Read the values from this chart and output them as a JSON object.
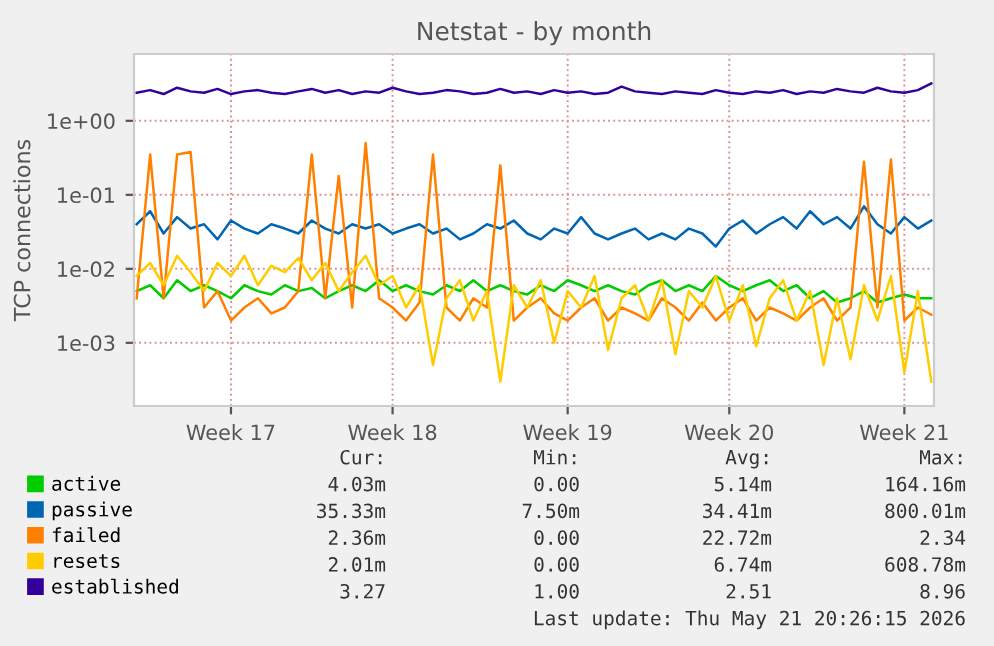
{
  "chart_data": {
    "type": "line",
    "title": "Netstat - by month",
    "ylabel": "TCP connections",
    "categories": [
      null,
      null,
      null,
      null,
      null,
      null,
      null,
      "Week 17",
      null,
      null,
      null,
      null,
      null,
      null,
      null,
      null,
      null,
      null,
      null,
      "Week 18",
      null,
      null,
      null,
      null,
      null,
      null,
      null,
      null,
      null,
      null,
      null,
      null,
      "Week 19",
      null,
      null,
      null,
      null,
      null,
      null,
      null,
      null,
      null,
      null,
      null,
      "Week 20",
      null,
      null,
      null,
      null,
      null,
      null,
      null,
      null,
      null,
      null,
      null,
      null,
      "Week 21",
      null,
      null
    ],
    "series": [
      {
        "name": "active",
        "color": "#00cc00",
        "values": [
          0.005,
          0.006,
          0.004,
          0.007,
          0.005,
          0.006,
          0.005,
          0.004,
          0.006,
          0.005,
          0.0045,
          0.006,
          0.005,
          0.0055,
          0.004,
          0.005,
          0.006,
          0.005,
          0.007,
          0.005,
          0.006,
          0.005,
          0.0045,
          0.006,
          0.005,
          0.007,
          0.005,
          0.006,
          0.005,
          0.0045,
          0.006,
          0.005,
          0.007,
          0.006,
          0.005,
          0.006,
          0.005,
          0.0045,
          0.006,
          0.007,
          0.005,
          0.006,
          0.005,
          0.008,
          0.006,
          0.005,
          0.006,
          0.007,
          0.005,
          0.006,
          0.004,
          0.005,
          0.0035,
          0.004,
          0.005,
          0.0035,
          0.004,
          0.0045,
          0.004,
          0.004
        ]
      },
      {
        "name": "passive",
        "color": "#0066b3",
        "values": [
          0.04,
          0.06,
          0.03,
          0.05,
          0.035,
          0.04,
          0.025,
          0.045,
          0.035,
          0.03,
          0.04,
          0.035,
          0.03,
          0.045,
          0.035,
          0.03,
          0.04,
          0.035,
          0.04,
          0.03,
          0.035,
          0.04,
          0.03,
          0.035,
          0.025,
          0.03,
          0.04,
          0.035,
          0.045,
          0.03,
          0.025,
          0.035,
          0.03,
          0.05,
          0.03,
          0.025,
          0.03,
          0.035,
          0.025,
          0.03,
          0.025,
          0.035,
          0.03,
          0.02,
          0.035,
          0.045,
          0.03,
          0.04,
          0.05,
          0.035,
          0.06,
          0.04,
          0.05,
          0.035,
          0.07,
          0.04,
          0.03,
          0.05,
          0.035,
          0.045
        ]
      },
      {
        "name": "failed",
        "color": "#ff8000",
        "values": [
          0.004,
          0.35,
          0.004,
          0.35,
          0.38,
          0.003,
          0.005,
          0.002,
          0.003,
          0.004,
          0.0025,
          0.003,
          0.005,
          0.35,
          0.004,
          0.18,
          0.003,
          0.5,
          0.004,
          0.003,
          0.002,
          0.0035,
          0.35,
          0.003,
          0.002,
          0.004,
          0.003,
          0.25,
          0.002,
          0.003,
          0.004,
          0.0025,
          0.002,
          0.003,
          0.004,
          0.002,
          0.003,
          0.0025,
          0.002,
          0.004,
          0.003,
          0.002,
          0.0035,
          0.002,
          0.003,
          0.004,
          0.002,
          0.003,
          0.0025,
          0.002,
          0.003,
          0.004,
          0.002,
          0.003,
          0.28,
          0.003,
          0.3,
          0.002,
          0.003,
          0.0024
        ]
      },
      {
        "name": "resets",
        "color": "#ffcc00",
        "values": [
          0.008,
          0.012,
          0.006,
          0.015,
          0.009,
          0.005,
          0.012,
          0.008,
          0.015,
          0.006,
          0.011,
          0.009,
          0.014,
          0.007,
          0.012,
          0.005,
          0.009,
          0.015,
          0.006,
          0.008,
          0.003,
          0.006,
          0.0005,
          0.004,
          0.007,
          0.002,
          0.005,
          0.0003,
          0.006,
          0.003,
          0.007,
          0.001,
          0.005,
          0.003,
          0.008,
          0.0008,
          0.004,
          0.006,
          0.002,
          0.007,
          0.0007,
          0.005,
          0.003,
          0.008,
          0.002,
          0.006,
          0.0009,
          0.004,
          0.007,
          0.002,
          0.005,
          0.0005,
          0.004,
          0.0006,
          0.006,
          0.002,
          0.008,
          0.0004,
          0.005,
          0.0003
        ]
      },
      {
        "name": "established",
        "color": "#330099",
        "values": [
          2.4,
          2.6,
          2.3,
          2.8,
          2.5,
          2.4,
          2.7,
          2.3,
          2.5,
          2.6,
          2.4,
          2.3,
          2.5,
          2.7,
          2.4,
          2.6,
          2.3,
          2.5,
          2.4,
          2.8,
          2.5,
          2.3,
          2.4,
          2.6,
          2.5,
          2.3,
          2.4,
          2.7,
          2.4,
          2.5,
          2.3,
          2.6,
          2.4,
          2.5,
          2.3,
          2.4,
          2.9,
          2.5,
          2.4,
          2.3,
          2.5,
          2.4,
          2.3,
          2.6,
          2.4,
          2.3,
          2.5,
          2.4,
          2.6,
          2.3,
          2.5,
          2.4,
          2.7,
          2.5,
          2.4,
          2.8,
          2.5,
          2.4,
          2.6,
          3.2
        ]
      }
    ],
    "log": "y",
    "ylim": [
      0.00014,
      8
    ],
    "yticks": [
      {
        "value": 0.001,
        "label": "1e-03"
      },
      {
        "value": 0.01,
        "label": "1e-02"
      },
      {
        "value": 0.1,
        "label": "1e-01"
      },
      {
        "value": 1,
        "label": "1e+00"
      }
    ],
    "grid": true,
    "legend": "bottom",
    "annotations": [
      "Cur:",
      "Min:",
      "Avg:",
      "Max:",
      "4.03m",
      "0.00",
      "5.14m",
      "164.16m",
      "35.33m",
      "7.50m",
      "34.41m",
      "800.01m",
      "2.36m",
      "0.00",
      "22.72m",
      "2.34",
      "2.01m",
      "0.00",
      "6.74m",
      "608.78m",
      "3.27",
      "1.00",
      "2.51",
      "8.96",
      "Last update: Thu May 21 20:26:15 2026"
    ]
  }
}
